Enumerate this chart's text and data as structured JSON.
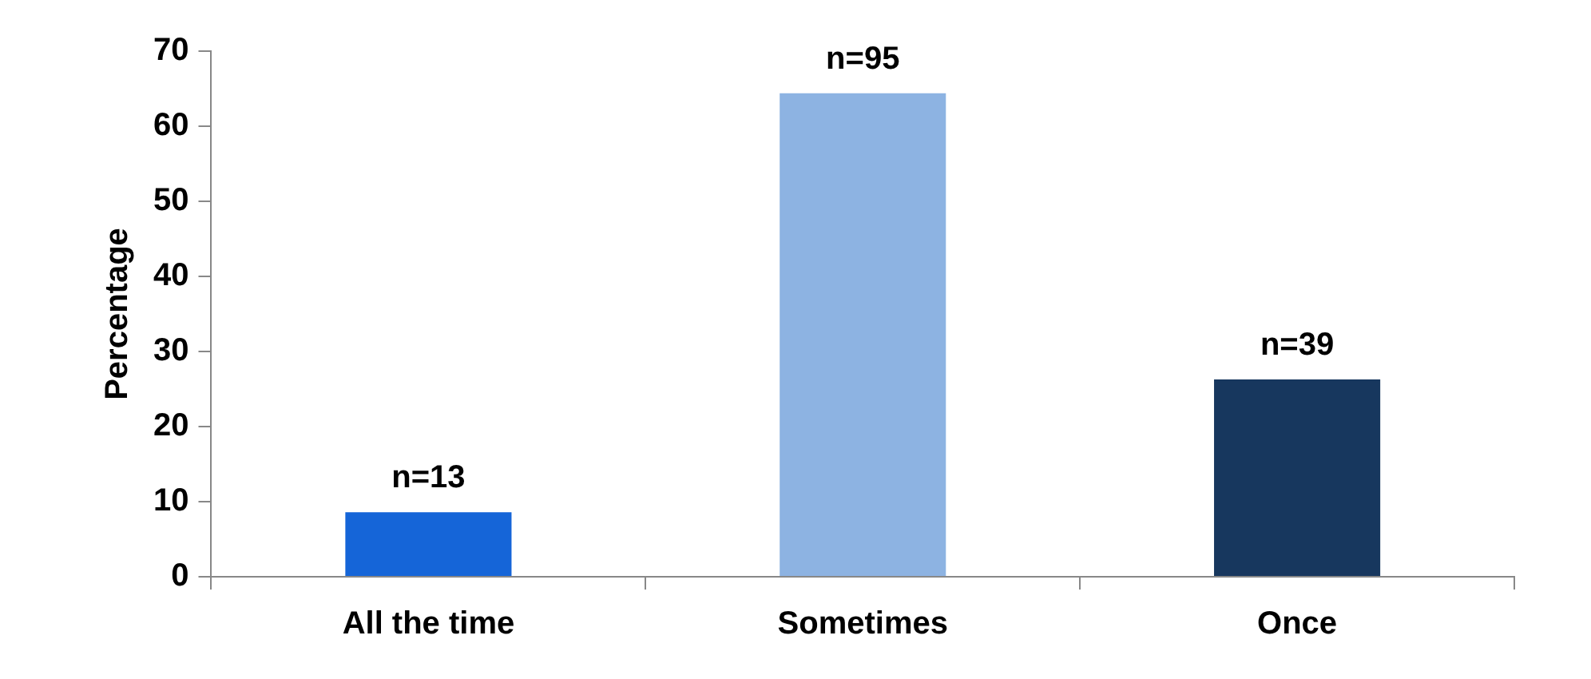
{
  "chart_data": {
    "type": "bar",
    "ylabel": "Percentage",
    "categories": [
      "All the time",
      "Sometimes",
      "Once"
    ],
    "values": [
      8.8,
      64.6,
      26.5
    ],
    "colors": [
      "#1565d8",
      "#8db3e2",
      "#17375e"
    ],
    "annotations": [
      {
        "text": "n=13",
        "x": "All the time",
        "y": 8.8
      },
      {
        "text": "n=95",
        "x": "Sometimes",
        "y": 64.6
      },
      {
        "text": "n=39",
        "x": "Once",
        "y": 26.5
      }
    ],
    "ylim": [
      0,
      70
    ],
    "yticks": [
      0,
      10,
      20,
      30,
      40,
      50,
      60,
      70
    ],
    "legend": false
  }
}
